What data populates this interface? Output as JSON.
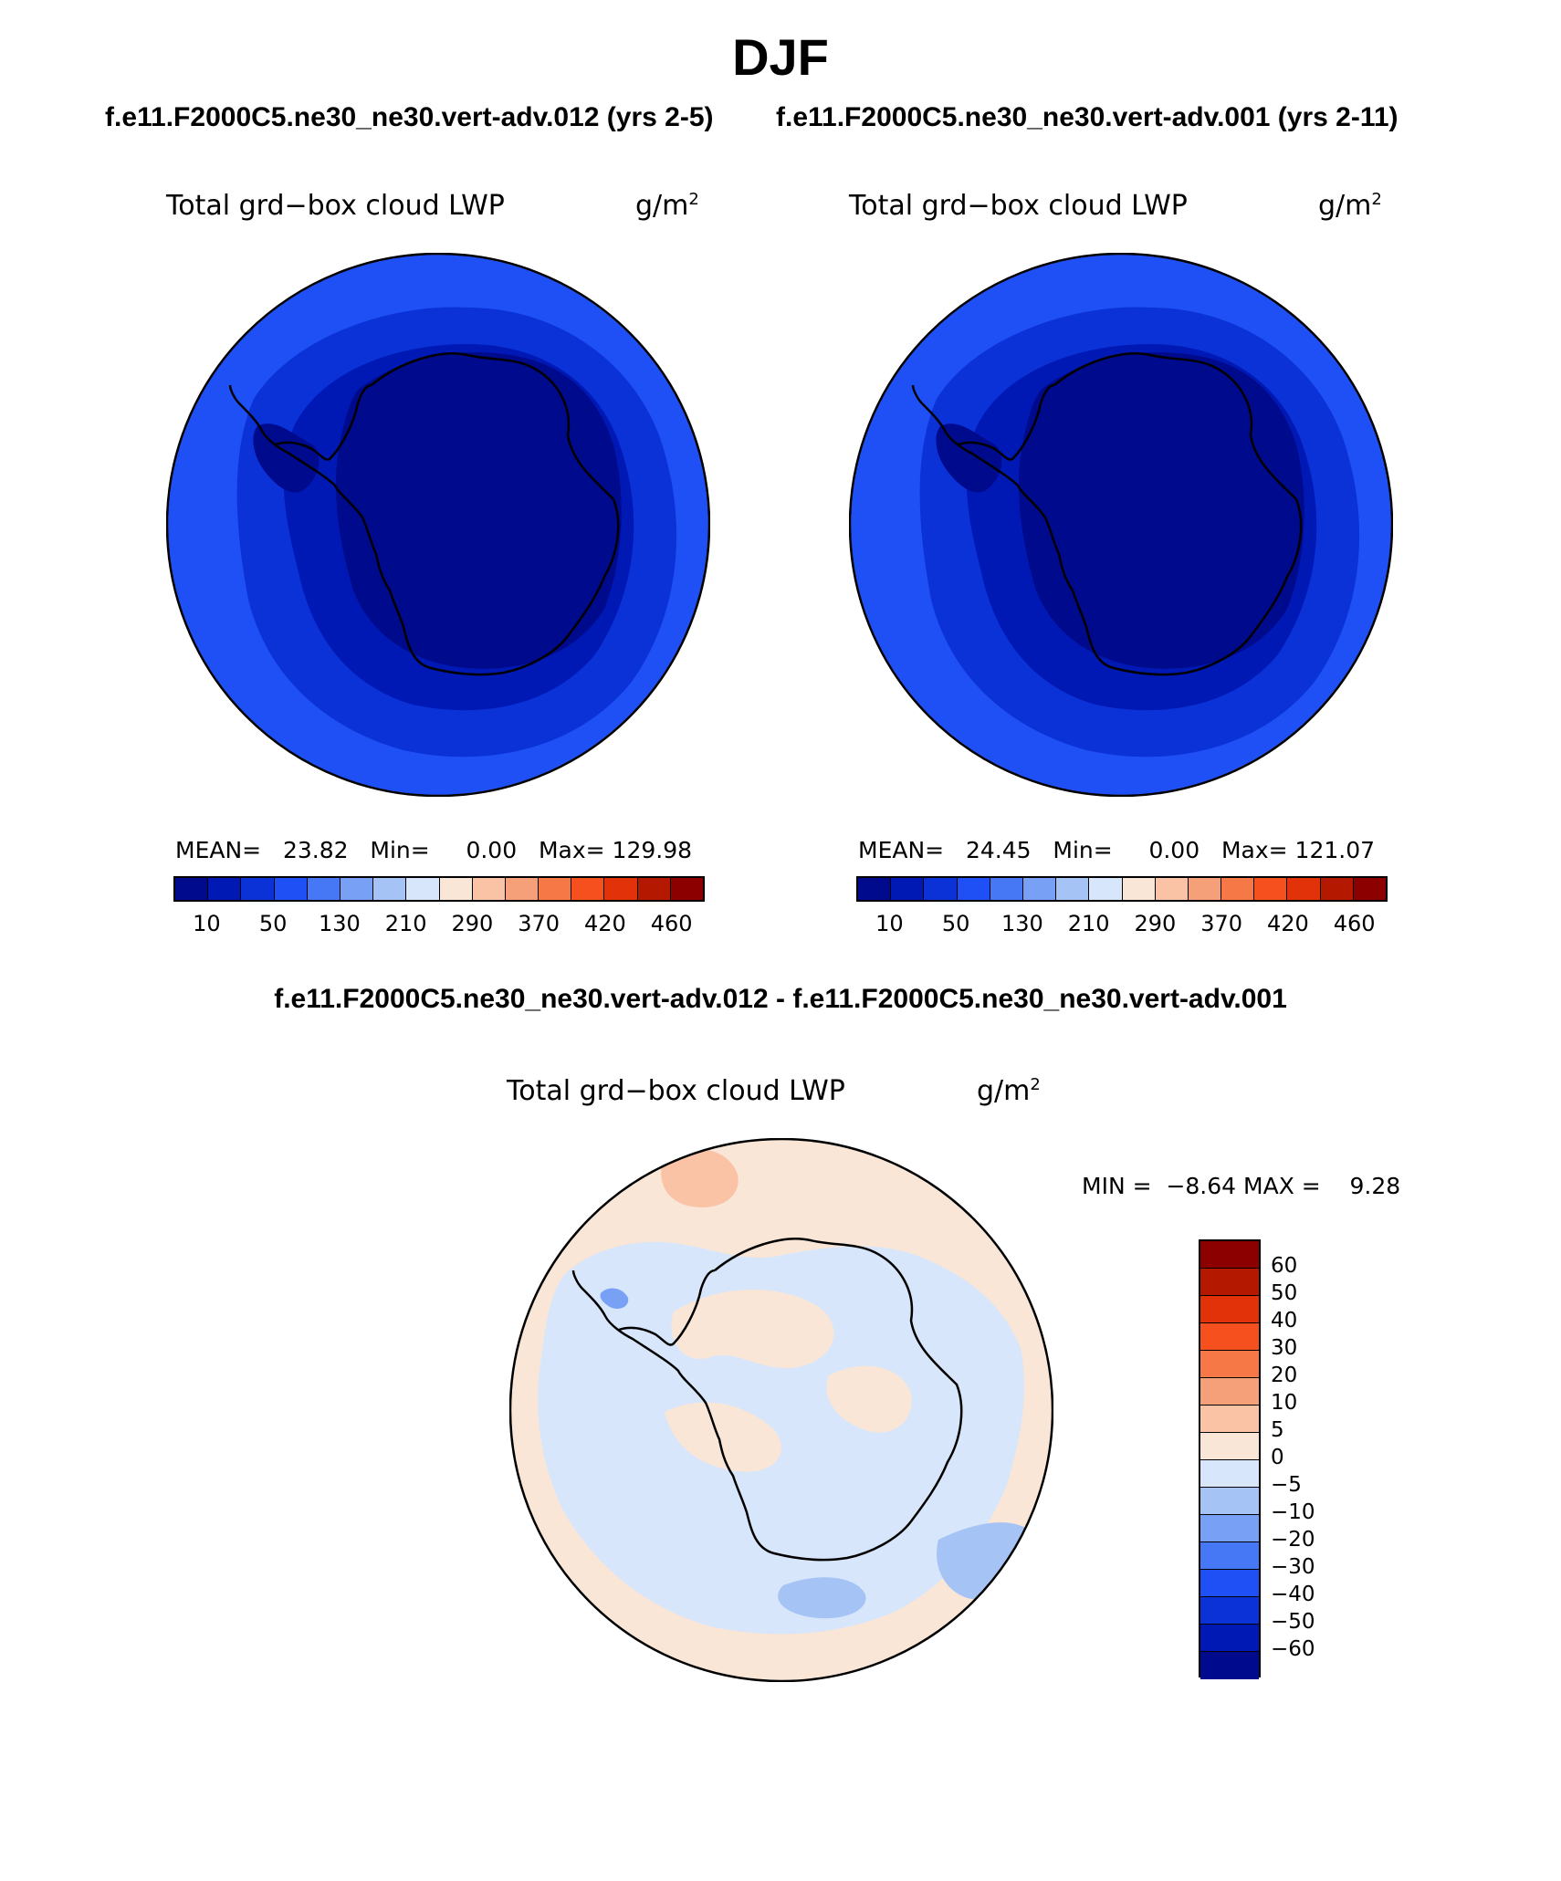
{
  "title": "DJF",
  "panels": [
    {
      "case": "f.e11.F2000C5.ne30_ne30.vert-adv.012 (yrs 2-5)",
      "variable": "Total grd−box cloud LWP",
      "units_base": "g/m",
      "units_exp": "2",
      "stats": {
        "mean_label": "MEAN=",
        "mean": "23.82",
        "min_label": "Min=",
        "min": "0.00",
        "max_label": "Max=",
        "max": "129.98"
      }
    },
    {
      "case": "f.e11.F2000C5.ne30_ne30.vert-adv.001 (yrs 2-11)",
      "variable": "Total grd−box cloud LWP",
      "units_base": "g/m",
      "units_exp": "2",
      "stats": {
        "mean_label": "MEAN=",
        "mean": "24.45",
        "min_label": "Min=",
        "min": "0.00",
        "max_label": "Max=",
        "max": "121.07"
      }
    }
  ],
  "colorbar_abs": {
    "colors": [
      "#000a8c",
      "#0019b4",
      "#0a32d7",
      "#1e50f5",
      "#4678f5",
      "#78a0f5",
      "#a5c3f5",
      "#d7e6fa",
      "#fae6d7",
      "#fac3a5",
      "#f5a078",
      "#f57846",
      "#f5501e",
      "#e1320a",
      "#b41900",
      "#8c0000"
    ],
    "ticks": [
      "10",
      "50",
      "130",
      "210",
      "290",
      "370",
      "420",
      "460"
    ]
  },
  "difference": {
    "title": "f.e11.F2000C5.ne30_ne30.vert-adv.012 - f.e11.F2000C5.ne30_ne30.vert-adv.001",
    "variable": "Total grd−box cloud LWP",
    "units_base": "g/m",
    "units_exp": "2",
    "min_label": "MIN =",
    "min": "−8.64",
    "max_label": "MAX =",
    "max": "9.28",
    "colorbar": {
      "colors": [
        "#8c0000",
        "#b41900",
        "#e1320a",
        "#f5501e",
        "#f57846",
        "#f5a078",
        "#fac3a5",
        "#fae6d7",
        "#d7e6fa",
        "#a5c3f5",
        "#78a0f5",
        "#4678f5",
        "#1e50f5",
        "#0a32d7",
        "#0019b4",
        "#000a8c"
      ],
      "ticks": [
        "60",
        "50",
        "40",
        "30",
        "20",
        "10",
        "5",
        "0",
        "−5",
        "−10",
        "−20",
        "−30",
        "−40",
        "−50",
        "−60"
      ]
    }
  }
}
